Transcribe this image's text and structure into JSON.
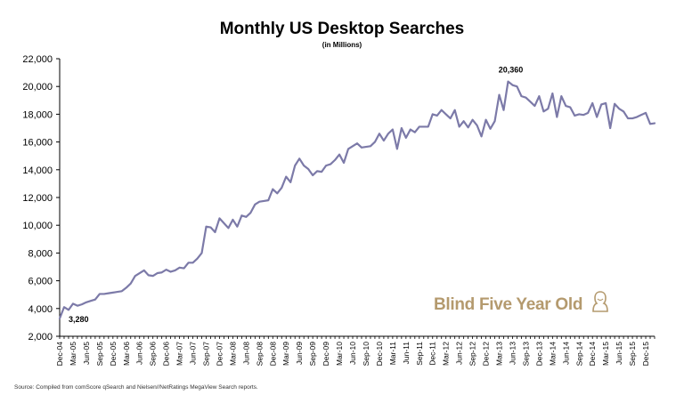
{
  "chart_data": {
    "type": "line",
    "title": "Monthly US Desktop Searches",
    "subtitle": "(in Millions)",
    "xlabel": "",
    "ylabel": "",
    "ylim": [
      2000,
      22000
    ],
    "y_ticks": [
      "2,000",
      "4,000",
      "6,000",
      "8,000",
      "10,000",
      "12,000",
      "14,000",
      "16,000",
      "18,000",
      "20,000",
      "22,000"
    ],
    "x_tick_labels": [
      "Dec-04",
      "Mar-05",
      "Jun-05",
      "Sep-05",
      "Dec-05",
      "Mar-06",
      "Jun-06",
      "Sep-06",
      "Dec-06",
      "Mar-07",
      "Jun-07",
      "Sep-07",
      "Dec-07",
      "Mar-08",
      "Jun-08",
      "Sep-08",
      "Dec-08",
      "Mar-09",
      "Jun-09",
      "Sep-09",
      "Dec-09",
      "Mar-10",
      "Jun-10",
      "Sep-10",
      "Dec-10",
      "Mar-11",
      "Jun-11",
      "Sep-11",
      "Dec-11",
      "Mar-12",
      "Jun-12",
      "Sep-12",
      "Dec-12",
      "Mar-13",
      "Jun-13",
      "Sep-13",
      "Dec-13",
      "Mar-14",
      "Jun-14",
      "Sep-14",
      "Dec-14",
      "Mar-15",
      "Jun-15",
      "Sep-15",
      "Dec-15"
    ],
    "series": [
      {
        "color": "#7c7aa8",
        "values": [
          3280,
          4100,
          3900,
          4350,
          4200,
          4300,
          4450,
          4550,
          4650,
          5050,
          5050,
          5100,
          5150,
          5200,
          5250,
          5500,
          5800,
          6350,
          6550,
          6750,
          6400,
          6350,
          6550,
          6600,
          6800,
          6650,
          6750,
          6950,
          6900,
          7300,
          7300,
          7600,
          8000,
          9900,
          9850,
          9500,
          10500,
          10150,
          9800,
          10400,
          9900,
          10700,
          10600,
          10900,
          11500,
          11700,
          11750,
          11800,
          12600,
          12300,
          12700,
          13500,
          13100,
          14300,
          14800,
          14300,
          14050,
          13600,
          13900,
          13850,
          14300,
          14400,
          14700,
          15100,
          14500,
          15500,
          15700,
          15900,
          15600,
          15650,
          15700,
          16000,
          16600,
          16100,
          16600,
          16900,
          15500,
          17000,
          16300,
          16900,
          16700,
          17100,
          17100,
          17100,
          18000,
          17900,
          18300,
          18000,
          17700,
          18300,
          17100,
          17500,
          17050,
          17600,
          17200,
          16400,
          17600,
          16950,
          17500,
          19400,
          18300,
          20360,
          20100,
          20000,
          19300,
          19200,
          18900,
          18600,
          19300,
          18200,
          18400,
          19500,
          17800,
          19300,
          18600,
          18500,
          17900,
          18000,
          17950,
          18100,
          18800,
          17800,
          18700,
          18800,
          17000,
          18750,
          18400,
          18200,
          17700,
          17700,
          17800,
          17950,
          18100,
          17300,
          17350
        ]
      }
    ],
    "annotations": [
      {
        "text": "20,360",
        "x_index": 101,
        "value": 20360
      },
      {
        "text": "3,280",
        "x_index": 0,
        "value": 3280
      }
    ],
    "grid": false,
    "legend": "none"
  },
  "source": "Source: Compiled from comScore qSearch and Nielsen//NetRatings MegaView Search reports.",
  "watermark": "Blind Five Year Old",
  "watermark_icon": "bust-logo-icon",
  "colors": {
    "line": "#7c7aa8",
    "watermark": "#b49a6e"
  }
}
